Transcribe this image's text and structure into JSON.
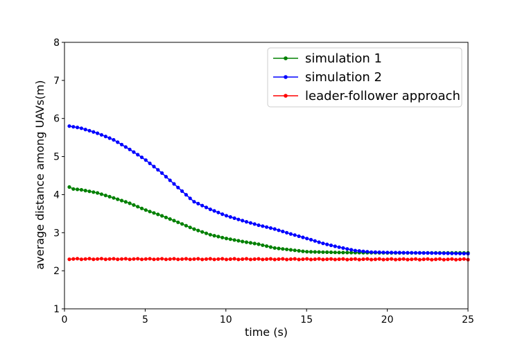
{
  "chart_data": {
    "type": "line",
    "title": "",
    "xlabel": "time (s)",
    "ylabel": "average distance among UAVs(m)",
    "xlim": [
      0,
      25
    ],
    "ylim": [
      1,
      8
    ],
    "xticks": [
      0,
      5,
      10,
      15,
      20,
      25
    ],
    "yticks": [
      1,
      2,
      3,
      4,
      5,
      6,
      7,
      8
    ],
    "grid": false,
    "legend_position": "top-right",
    "marker": "circle",
    "series": [
      {
        "name": "simulation 1",
        "color": "#008000",
        "knots": [
          [
            0.3,
            4.2
          ],
          [
            0.5,
            4.15
          ],
          [
            1,
            4.13
          ],
          [
            2,
            4.05
          ],
          [
            3,
            3.92
          ],
          [
            4,
            3.78
          ],
          [
            5,
            3.6
          ],
          [
            6,
            3.45
          ],
          [
            7,
            3.28
          ],
          [
            8,
            3.1
          ],
          [
            9,
            2.95
          ],
          [
            10,
            2.85
          ],
          [
            11,
            2.77
          ],
          [
            12,
            2.7
          ],
          [
            13,
            2.6
          ],
          [
            14,
            2.55
          ],
          [
            15,
            2.5
          ],
          [
            17,
            2.48
          ],
          [
            20,
            2.47
          ],
          [
            25,
            2.47
          ]
        ]
      },
      {
        "name": "simulation 2",
        "color": "#0000ff",
        "knots": [
          [
            0.3,
            5.8
          ],
          [
            1,
            5.75
          ],
          [
            2,
            5.62
          ],
          [
            3,
            5.45
          ],
          [
            4,
            5.2
          ],
          [
            5,
            4.92
          ],
          [
            6,
            4.58
          ],
          [
            7,
            4.2
          ],
          [
            8,
            3.82
          ],
          [
            9,
            3.62
          ],
          [
            10,
            3.45
          ],
          [
            11,
            3.32
          ],
          [
            12,
            3.2
          ],
          [
            13,
            3.1
          ],
          [
            14,
            2.97
          ],
          [
            15,
            2.85
          ],
          [
            16,
            2.72
          ],
          [
            17,
            2.62
          ],
          [
            18,
            2.53
          ],
          [
            19,
            2.49
          ],
          [
            20,
            2.48
          ],
          [
            22,
            2.47
          ],
          [
            25,
            2.45
          ]
        ]
      },
      {
        "name": "leader-follower approach",
        "color": "#ff0000",
        "knots": [
          [
            0.3,
            2.31
          ],
          [
            25,
            2.3
          ]
        ]
      }
    ]
  }
}
